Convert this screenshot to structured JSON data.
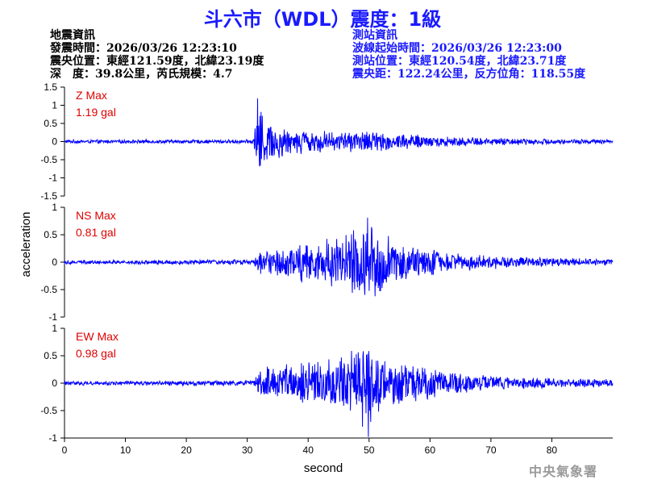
{
  "title": "斗六市（WDL）震度：1級",
  "quake_info": {
    "heading": "地震資訊",
    "time": "發震時間：2026/03/26 12:23:10",
    "location": "震央位置：東經121.59度，北緯23.19度",
    "depth_magnitude": "深　度：39.8公里，芮氏規模：4.7"
  },
  "station_info": {
    "heading": "測站資訊",
    "wave_start": "波線起始時間：2026/03/26 12:23:00",
    "location": "測站位置：東經120.54度，北緯23.71度",
    "distance": "震央距：122.24公里，反方位角：118.55度"
  },
  "agency": "中央氣象署",
  "colors": {
    "trace": "#0000ff",
    "label": "#e00000",
    "title": "#1a1aff"
  },
  "chart_data": {
    "type": "line",
    "xlabel": "second",
    "ylabel": "acceleration",
    "xlim": [
      0,
      90
    ],
    "xticks": [
      0,
      10,
      20,
      30,
      40,
      50,
      60,
      70,
      80
    ],
    "panels": [
      {
        "component": "Z",
        "label": "Z Max",
        "max_text": "1.19 gal",
        "max_value": 1.19,
        "ylim": [
          -1.5,
          1.5
        ],
        "yticks": [
          1.5,
          1,
          0.5,
          0,
          -0.5,
          -1,
          -1.5
        ],
        "ytick_labels": [
          "1.5",
          "1",
          "0.5",
          "0",
          "-0.5",
          "-1",
          "-1.5"
        ],
        "envelope": [
          [
            0,
            0.05
          ],
          [
            30,
            0.06
          ],
          [
            31,
            0.07
          ],
          [
            31.6,
            1.1
          ],
          [
            33,
            0.75
          ],
          [
            36,
            0.5
          ],
          [
            40,
            0.35
          ],
          [
            45,
            0.3
          ],
          [
            50,
            0.32
          ],
          [
            55,
            0.25
          ],
          [
            60,
            0.18
          ],
          [
            70,
            0.12
          ],
          [
            80,
            0.08
          ],
          [
            90,
            0.06
          ]
        ]
      },
      {
        "component": "NS",
        "label": "NS Max",
        "max_text": "0.81 gal",
        "max_value": 0.81,
        "ylim": [
          -1,
          1
        ],
        "yticks": [
          1,
          0.5,
          0,
          -0.5,
          -1
        ],
        "ytick_labels": [
          "1",
          "0.5",
          "0",
          "-0.5",
          "-1"
        ],
        "envelope": [
          [
            0,
            0.04
          ],
          [
            31,
            0.05
          ],
          [
            32,
            0.25
          ],
          [
            35,
            0.3
          ],
          [
            40,
            0.4
          ],
          [
            45,
            0.5
          ],
          [
            48,
            0.7
          ],
          [
            51,
            0.75
          ],
          [
            54,
            0.45
          ],
          [
            58,
            0.3
          ],
          [
            65,
            0.18
          ],
          [
            75,
            0.1
          ],
          [
            90,
            0.06
          ]
        ]
      },
      {
        "component": "EW",
        "label": "EW Max",
        "max_text": "0.98 gal",
        "max_value": 0.98,
        "ylim": [
          -1,
          1
        ],
        "yticks": [
          1,
          0.5,
          0,
          -0.5,
          -1
        ],
        "ytick_labels": [
          "1",
          "0.5",
          "0",
          "-0.5",
          "-1"
        ],
        "envelope": [
          [
            0,
            0.04
          ],
          [
            31,
            0.05
          ],
          [
            32,
            0.3
          ],
          [
            35,
            0.35
          ],
          [
            40,
            0.42
          ],
          [
            45,
            0.5
          ],
          [
            48,
            0.8
          ],
          [
            50,
            0.9
          ],
          [
            53,
            0.55
          ],
          [
            58,
            0.35
          ],
          [
            65,
            0.2
          ],
          [
            75,
            0.12
          ],
          [
            90,
            0.07
          ]
        ]
      }
    ]
  }
}
